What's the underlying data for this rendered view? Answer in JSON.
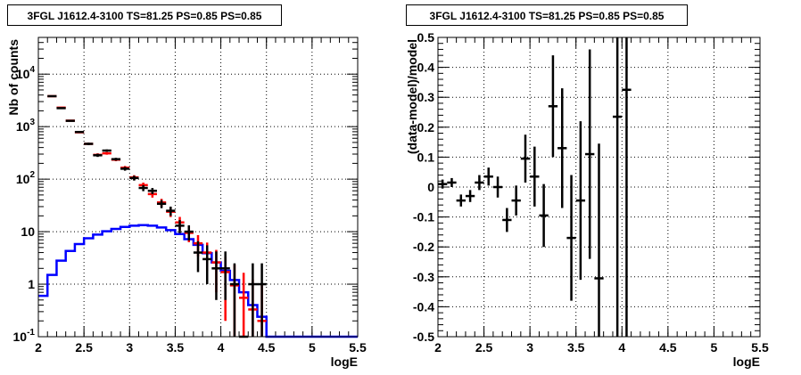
{
  "chart_data": [
    {
      "type": "line",
      "title": "3FGL J1612.4-3100 TS=81.25 PS=0.85 PS=0.85",
      "xlabel": "logE",
      "ylabel": "Nb of counts",
      "xlim": [
        2,
        5.5
      ],
      "ylim": [
        0.1,
        50000
      ],
      "yscale": "log",
      "grid": true,
      "x_ticks": [
        "2",
        "2.5",
        "3",
        "3.5",
        "4",
        "4.5",
        "5",
        "5.5"
      ],
      "y_ticks": [
        "10^{-1}",
        "1",
        "10",
        "10^{2}",
        "10^{3}",
        "10^{4}"
      ],
      "series": [
        {
          "color": "#0000ff",
          "style": "step",
          "bin_edges": [
            2.0,
            2.1,
            2.2,
            2.3,
            2.4,
            2.5,
            2.6,
            2.7,
            2.8,
            2.9,
            3.0,
            3.1,
            3.2,
            3.3,
            3.4,
            3.5,
            3.6,
            3.7,
            3.8,
            3.9,
            4.0,
            4.1,
            4.2,
            4.3,
            4.4,
            4.5,
            4.6,
            4.7,
            4.8,
            4.9,
            5.0,
            5.1,
            5.2,
            5.3,
            5.4,
            5.5
          ],
          "values": [
            0.6,
            1.5,
            2.8,
            4.3,
            5.8,
            7.5,
            8.8,
            10.2,
            11.3,
            12.3,
            13.0,
            13.3,
            13.0,
            12.0,
            10.7,
            9.0,
            7.2,
            5.6,
            3.9,
            2.6,
            1.8,
            1.2,
            0.7,
            0.4,
            0.24,
            0.1,
            0.1,
            0.1,
            0.1,
            0.1,
            0.1,
            0.1,
            0.1,
            0.1,
            0.1
          ]
        },
        {
          "color": "#ff0000",
          "style": "errorbar",
          "x": [
            2.15,
            2.25,
            2.35,
            2.45,
            2.55,
            2.65,
            2.75,
            2.85,
            2.95,
            3.05,
            3.15,
            3.25,
            3.35,
            3.45,
            3.55,
            3.65,
            3.75,
            3.85,
            3.95,
            4.05,
            4.15,
            4.25,
            4.35,
            4.45
          ],
          "y": [
            3800,
            2300,
            1300,
            780,
            470,
            290,
            310,
            235,
            165,
            108,
            77,
            52,
            36,
            24,
            15,
            9.5,
            6.0,
            4.0,
            2.6,
            1.7,
            0.95,
            0.55,
            0.33,
            0.2
          ],
          "yerr_low": [
            60,
            50,
            40,
            30,
            25,
            20,
            18,
            15,
            13,
            11,
            9,
            7.5,
            6.2,
            5,
            4.1,
            3.2,
            2.6,
            2.2,
            1.9,
            1.5,
            0.95,
            0.55,
            0.33,
            0.2
          ],
          "yerr_high": [
            60,
            50,
            40,
            30,
            25,
            20,
            18,
            15,
            13,
            11,
            9,
            7.5,
            6.2,
            5,
            4.1,
            3.2,
            2.6,
            2.2,
            1.9,
            1.6,
            1.4,
            1.1,
            0.9,
            0.8
          ]
        },
        {
          "color": "#000000",
          "style": "errorbar",
          "x": [
            2.15,
            2.25,
            2.35,
            2.45,
            2.55,
            2.65,
            2.75,
            2.85,
            2.95,
            3.05,
            3.15,
            3.25,
            3.35,
            3.45,
            3.55,
            3.65,
            3.75,
            3.85,
            3.95,
            4.05,
            4.15,
            4.25,
            4.35,
            4.45
          ],
          "y": [
            3800,
            2250,
            1290,
            790,
            470,
            285,
            350,
            240,
            158,
            105,
            68,
            60,
            34,
            25,
            13,
            10,
            4.0,
            3.0,
            2.0,
            2.0,
            1.0,
            0.1,
            1.0,
            1.0
          ],
          "yerr_low": [
            60,
            50,
            40,
            30,
            25,
            20,
            18,
            15,
            13,
            11,
            9,
            8,
            6,
            5,
            3.6,
            3.2,
            2.3,
            2.0,
            1.5,
            1.5,
            0.9,
            0.0,
            0.9,
            0.9
          ],
          "yerr_high": [
            60,
            50,
            40,
            30,
            25,
            20,
            18,
            15,
            13,
            11,
            9,
            8,
            6,
            5,
            3.6,
            3.2,
            2.6,
            2.5,
            2.2,
            2.2,
            1.5,
            0.0,
            1.5,
            1.5
          ]
        }
      ]
    },
    {
      "type": "scatter",
      "title": "3FGL J1612.4-3100 TS=81.25 PS=0.85 PS=0.85",
      "xlabel": "logE",
      "ylabel": "(data-model)/model",
      "xlim": [
        2,
        5.5
      ],
      "ylim": [
        -0.5,
        0.5
      ],
      "grid": true,
      "x_ticks": [
        "2",
        "2.5",
        "3",
        "3.5",
        "4",
        "4.5",
        "5",
        "5.5"
      ],
      "y_ticks": [
        "-0.5",
        "-0.4",
        "-0.3",
        "-0.2",
        "-0.1",
        "0",
        "0.1",
        "0.2",
        "0.3",
        "0.4",
        "0.5"
      ],
      "series": [
        {
          "color": "#000000",
          "style": "errorbar",
          "x": [
            2.05,
            2.15,
            2.25,
            2.35,
            2.45,
            2.55,
            2.65,
            2.75,
            2.85,
            2.95,
            3.05,
            3.15,
            3.25,
            3.35,
            3.45,
            3.55,
            3.65,
            3.75,
            3.95,
            4.05
          ],
          "y": [
            0.01,
            0.015,
            -0.045,
            -0.03,
            0.015,
            0.035,
            0.0,
            -0.11,
            -0.045,
            0.095,
            0.035,
            -0.095,
            0.27,
            0.13,
            -0.17,
            -0.045,
            0.11,
            -0.305,
            0.235,
            0.325
          ],
          "yerr": [
            0.015,
            0.015,
            0.02,
            0.02,
            0.025,
            0.03,
            0.035,
            0.04,
            0.05,
            0.08,
            0.1,
            0.105,
            0.17,
            0.2,
            0.21,
            0.265,
            0.35,
            0.45,
            0.8,
            1.0
          ]
        }
      ]
    }
  ]
}
